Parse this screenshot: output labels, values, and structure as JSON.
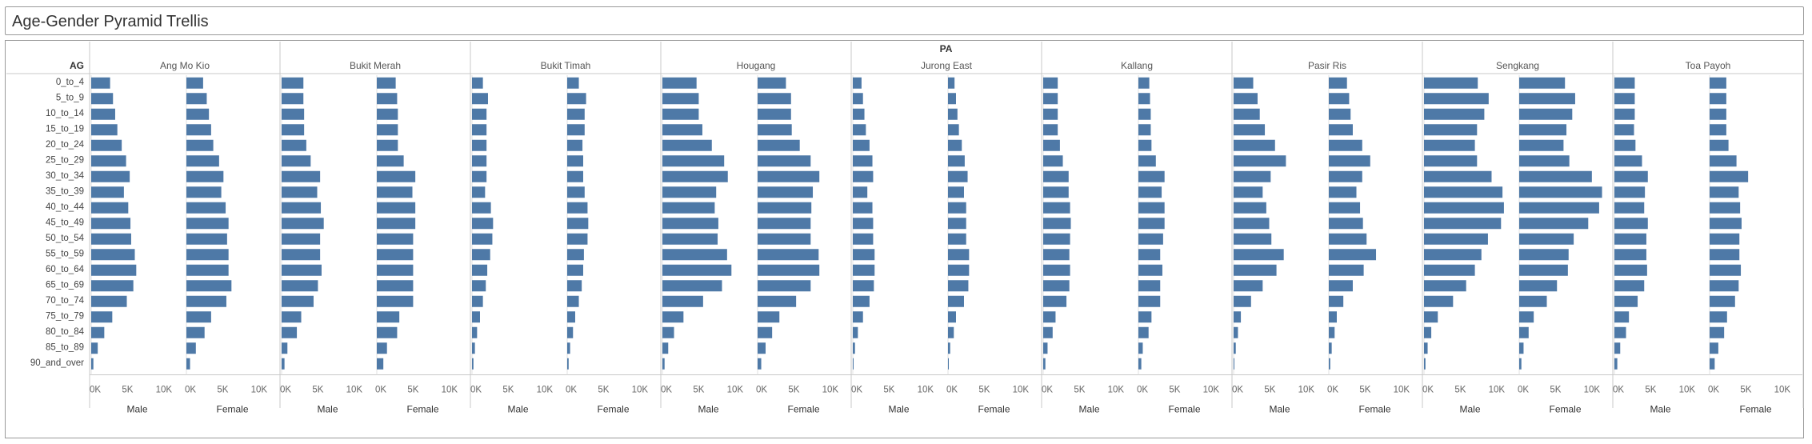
{
  "page": {
    "title": "Age-Gender Pyramid Trellis"
  },
  "chart_data": {
    "type": "bar",
    "orientation": "horizontal",
    "column_header": "PA",
    "row_header": "AG",
    "genders": [
      "Male",
      "Female"
    ],
    "x_ticks": [
      {
        "value": 0,
        "label": "0K"
      },
      {
        "value": 5000,
        "label": "5K"
      },
      {
        "value": 10000,
        "label": "10K"
      }
    ],
    "xlim": [
      0,
      12000
    ],
    "bar_color": "#4e79a7",
    "age_groups": [
      "0_to_4",
      "5_to_9",
      "10_to_14",
      "15_to_19",
      "20_to_24",
      "25_to_29",
      "30_to_34",
      "35_to_39",
      "40_to_44",
      "45_to_49",
      "50_to_54",
      "55_to_59",
      "60_to_64",
      "65_to_69",
      "70_to_74",
      "75_to_79",
      "80_to_84",
      "85_to_89",
      "90_and_over"
    ],
    "areas": [
      {
        "name": "Ang Mo Kio",
        "male": [
          2600,
          3000,
          3300,
          3600,
          4200,
          4800,
          5300,
          4500,
          5100,
          5400,
          5500,
          6000,
          6200,
          5800,
          4900,
          2900,
          1800,
          900,
          300
        ],
        "female": [
          2300,
          2800,
          3100,
          3400,
          3700,
          4500,
          5100,
          4800,
          5400,
          5800,
          5600,
          5800,
          5800,
          6200,
          5500,
          3400,
          2500,
          1300,
          500
        ]
      },
      {
        "name": "Bukit Merah",
        "male": [
          3000,
          3000,
          3100,
          3100,
          3400,
          4000,
          5300,
          4900,
          5400,
          5800,
          5300,
          5300,
          5500,
          5000,
          4400,
          2700,
          2100,
          800,
          400
        ],
        "female": [
          2600,
          2800,
          2900,
          2900,
          2900,
          3700,
          5300,
          4900,
          5300,
          5300,
          5000,
          5000,
          5000,
          5000,
          5000,
          3100,
          2800,
          1400,
          900
        ]
      },
      {
        "name": "Bukit Timah",
        "male": [
          1500,
          2200,
          2000,
          2000,
          2000,
          2000,
          2000,
          1800,
          2600,
          2900,
          2800,
          2500,
          2100,
          1900,
          1500,
          1100,
          700,
          400,
          200
        ],
        "female": [
          1600,
          2600,
          2400,
          2400,
          2100,
          2200,
          2200,
          2400,
          2800,
          2900,
          2800,
          2300,
          2200,
          2000,
          1600,
          1100,
          800,
          400,
          200
        ]
      },
      {
        "name": "Hougang",
        "male": [
          4700,
          5000,
          5000,
          5500,
          6800,
          8500,
          9000,
          7400,
          7200,
          7700,
          7600,
          8900,
          9500,
          8200,
          5600,
          2900,
          1600,
          800,
          300
        ],
        "female": [
          3900,
          4600,
          4600,
          4700,
          5800,
          7300,
          8500,
          7600,
          7400,
          7300,
          7300,
          8400,
          8500,
          7300,
          5300,
          3000,
          2000,
          1100,
          500
        ]
      },
      {
        "name": "Jurong East",
        "male": [
          1200,
          1400,
          1600,
          1800,
          2300,
          2700,
          2800,
          2000,
          2700,
          2800,
          2800,
          3000,
          3000,
          2900,
          2300,
          1400,
          700,
          300,
          100
        ],
        "female": [
          900,
          1100,
          1300,
          1500,
          1900,
          2300,
          2700,
          2200,
          2500,
          2500,
          2500,
          2900,
          2900,
          2800,
          2200,
          1100,
          800,
          300,
          100
        ]
      },
      {
        "name": "Kallang",
        "male": [
          2000,
          2000,
          2000,
          2000,
          2300,
          2700,
          3500,
          3500,
          3700,
          3800,
          3700,
          3600,
          3700,
          3600,
          3200,
          1700,
          1300,
          600,
          300
        ],
        "female": [
          1500,
          1600,
          1700,
          1700,
          1800,
          2400,
          3600,
          3200,
          3600,
          3600,
          3400,
          3000,
          3300,
          3000,
          3000,
          1800,
          1400,
          600,
          400
        ]
      },
      {
        "name": "Pasir Ris",
        "male": [
          2700,
          3300,
          3600,
          4300,
          5700,
          7200,
          5100,
          4000,
          4500,
          4900,
          5200,
          6900,
          5900,
          4000,
          2400,
          1000,
          600,
          300,
          100
        ],
        "female": [
          2500,
          2800,
          3000,
          3300,
          4600,
          5700,
          4600,
          3800,
          4300,
          4700,
          5200,
          6500,
          4800,
          3300,
          2000,
          1100,
          800,
          400,
          200
        ]
      },
      {
        "name": "Sengkang",
        "male": [
          7400,
          8900,
          8300,
          7300,
          7000,
          7300,
          9300,
          10800,
          11000,
          10600,
          8800,
          7900,
          7000,
          5800,
          4000,
          1900,
          1000,
          500,
          200
        ],
        "female": [
          6300,
          7700,
          7300,
          6500,
          6100,
          6900,
          10000,
          11400,
          11000,
          9500,
          7500,
          6800,
          6700,
          5200,
          3800,
          2000,
          1300,
          600,
          300
        ]
      },
      {
        "name": "Toa Payoh",
        "male": [
          2800,
          2800,
          2800,
          2700,
          2900,
          3800,
          4600,
          4200,
          4100,
          4600,
          4400,
          4400,
          4500,
          4100,
          3200,
          2000,
          1600,
          800,
          400
        ],
        "female": [
          2300,
          2300,
          2300,
          2300,
          2600,
          3700,
          5300,
          4000,
          4200,
          4400,
          4100,
          4100,
          4300,
          4000,
          3500,
          2400,
          2000,
          1200,
          700
        ]
      }
    ]
  }
}
